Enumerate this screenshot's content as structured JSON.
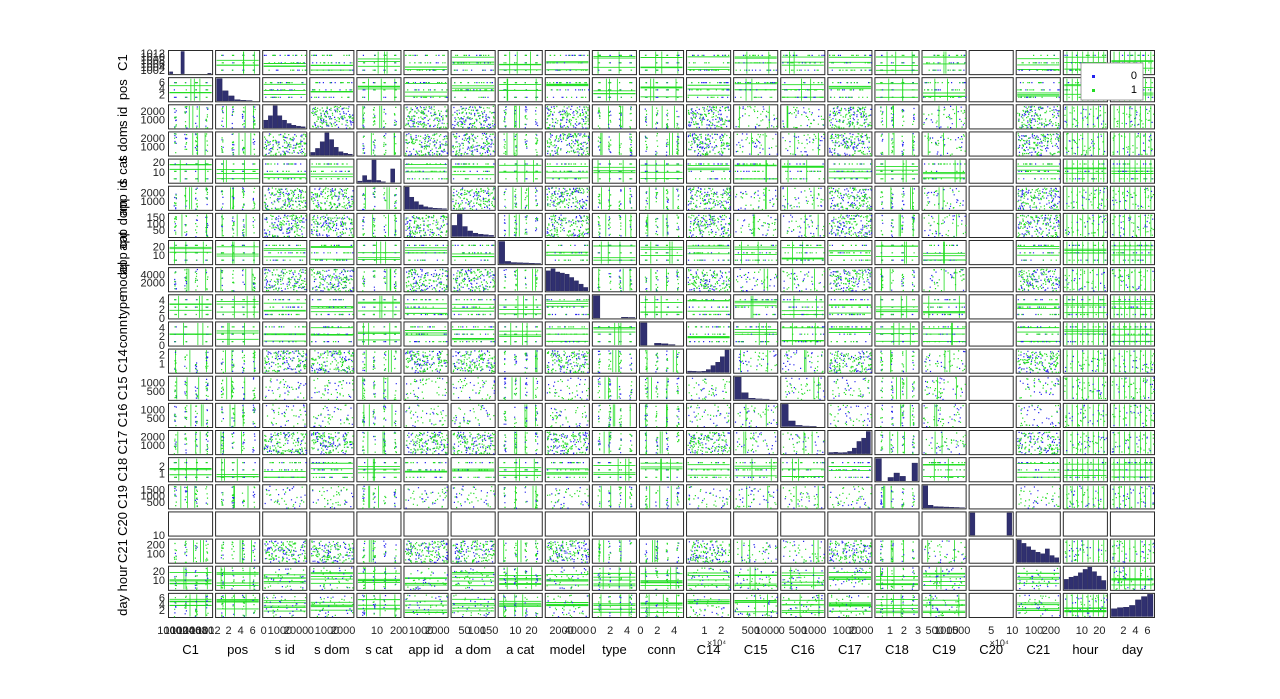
{
  "chart_data": {
    "type": "scatter",
    "subtype": "scatter-matrix (gplotmatrix) with diagonal histograms",
    "variables": [
      "C1",
      "pos",
      "s id",
      "s dom",
      "s cat",
      "app id",
      "a dom",
      "a cat",
      "model",
      "type",
      "conn",
      "C14",
      "C15",
      "C16",
      "C17",
      "C18",
      "C19",
      "C20",
      "C21",
      "hour",
      "day"
    ],
    "row_labels": [
      "C1",
      "pos",
      "s id",
      "s dom",
      "s cat",
      "app id",
      "app dom",
      "app cat",
      "model",
      "type",
      "conn",
      "C14",
      "C15",
      "C16",
      "C17",
      "C18",
      "C19",
      "C20",
      "C21",
      "hour",
      "day"
    ],
    "col_labels": [
      "C1",
      "pos",
      "s id",
      "s dom",
      "s cat",
      "app id",
      "a dom",
      "a cat",
      "model",
      "type",
      "conn",
      "C14",
      "C15",
      "C16",
      "C17",
      "C18",
      "C19",
      "C20",
      "C21",
      "hour",
      "day"
    ],
    "ranges": [
      [
        1000,
        1013
      ],
      [
        0,
        7
      ],
      [
        0,
        2600
      ],
      [
        0,
        2600
      ],
      [
        0,
        22
      ],
      [
        0,
        2600
      ],
      [
        0,
        170
      ],
      [
        0,
        26
      ],
      [
        0,
        5500
      ],
      [
        0,
        5
      ],
      [
        0,
        5
      ],
      [
        0,
        25000
      ],
      [
        0,
        1300
      ],
      [
        0,
        1300
      ],
      [
        0,
        2600
      ],
      [
        0,
        3
      ],
      [
        0,
        1800
      ],
      [
        0,
        100000
      ],
      [
        0,
        250
      ],
      [
        0,
        24
      ],
      [
        0,
        7
      ]
    ],
    "row_ticks": [
      {
        "labels": [
          "1012",
          "1010",
          "1008",
          "1006",
          "1004",
          "1002"
        ],
        "values": [
          1012,
          1010,
          1008,
          1006,
          1004,
          1002
        ]
      },
      {
        "labels": [
          "6",
          "4",
          "2"
        ],
        "values": [
          6,
          4,
          2
        ]
      },
      {
        "labels": [
          "2000",
          "1000"
        ],
        "values": [
          2000,
          1000
        ]
      },
      {
        "labels": [
          "2000",
          "1000"
        ],
        "values": [
          2000,
          1000
        ]
      },
      {
        "labels": [
          "20",
          "10"
        ],
        "values": [
          20,
          10
        ]
      },
      {
        "labels": [
          "2000",
          "1000"
        ],
        "values": [
          2000,
          1000
        ]
      },
      {
        "labels": [
          "150",
          "100",
          "50"
        ],
        "values": [
          150,
          100,
          50
        ]
      },
      {
        "labels": [
          "20",
          "10"
        ],
        "values": [
          20,
          10
        ]
      },
      {
        "labels": [
          "4000",
          "2000"
        ],
        "values": [
          4000,
          2000
        ]
      },
      {
        "labels": [
          "4",
          "2",
          "0"
        ],
        "values": [
          4,
          2,
          0
        ]
      },
      {
        "labels": [
          "4",
          "2",
          "0"
        ],
        "values": [
          4,
          2,
          0
        ]
      },
      {
        "labels": [
          "2",
          "1"
        ],
        "values": [
          20000,
          10000
        ],
        "exponent": "×10⁴"
      },
      {
        "labels": [
          "1000",
          "500"
        ],
        "values": [
          1000,
          500
        ]
      },
      {
        "labels": [
          "1000",
          "500"
        ],
        "values": [
          1000,
          500
        ]
      },
      {
        "labels": [
          "2000",
          "1000"
        ],
        "values": [
          2000,
          1000
        ]
      },
      {
        "labels": [
          "2",
          "1"
        ],
        "values": [
          2,
          1
        ]
      },
      {
        "labels": [
          "1500",
          "1000",
          "500"
        ],
        "values": [
          1500,
          1000,
          500
        ]
      },
      {
        "labels": [
          "10"
        ],
        "values": [
          0
        ]
      },
      {
        "labels": [
          "200",
          "100"
        ],
        "values": [
          200,
          100
        ]
      },
      {
        "labels": [
          "20",
          "10"
        ],
        "values": [
          20,
          10
        ]
      },
      {
        "labels": [
          "6",
          "4",
          "2"
        ],
        "values": [
          6,
          4,
          2
        ]
      }
    ],
    "col_ticks": [
      {
        "labels": [
          "1000",
          "1002",
          "1004",
          "1006",
          "1008",
          "1010",
          "1012"
        ],
        "values": [
          1000,
          1002,
          1004,
          1006,
          1008,
          1010,
          1012
        ]
      },
      {
        "labels": [
          "2",
          "4",
          "6"
        ],
        "values": [
          2,
          4,
          6
        ]
      },
      {
        "labels": [
          "0",
          "1000",
          "2000"
        ],
        "values": [
          0,
          1000,
          2000
        ]
      },
      {
        "labels": [
          "0",
          "1000",
          "2000"
        ],
        "values": [
          0,
          1000,
          2000
        ]
      },
      {
        "labels": [
          "10",
          "20"
        ],
        "values": [
          10,
          20
        ]
      },
      {
        "labels": [
          "0",
          "1000",
          "2000"
        ],
        "values": [
          0,
          1000,
          2000
        ]
      },
      {
        "labels": [
          "50",
          "100",
          "150"
        ],
        "values": [
          50,
          100,
          150
        ]
      },
      {
        "labels": [
          "10",
          "20"
        ],
        "values": [
          10,
          20
        ]
      },
      {
        "labels": [
          "2000",
          "4000"
        ],
        "values": [
          2000,
          4000
        ]
      },
      {
        "labels": [
          "0",
          "2",
          "4"
        ],
        "values": [
          0,
          2,
          4
        ]
      },
      {
        "labels": [
          "0",
          "2",
          "4"
        ],
        "values": [
          0,
          2,
          4
        ]
      },
      {
        "labels": [
          "1",
          "2"
        ],
        "values": [
          10000,
          20000
        ],
        "exponent": "×10⁴"
      },
      {
        "labels": [
          "500",
          "1000"
        ],
        "values": [
          500,
          1000
        ]
      },
      {
        "labels": [
          "0",
          "500",
          "1000"
        ],
        "values": [
          0,
          500,
          1000
        ]
      },
      {
        "labels": [
          "1000",
          "2000"
        ],
        "values": [
          1000,
          2000
        ]
      },
      {
        "labels": [
          "1",
          "2",
          "3"
        ],
        "values": [
          1,
          2,
          3
        ]
      },
      {
        "labels": [
          "500",
          "1000",
          "1500"
        ],
        "values": [
          500,
          1000,
          1500
        ]
      },
      {
        "labels": [
          "5",
          "10"
        ],
        "values": [
          50000,
          100000
        ],
        "exponent": "×10⁴"
      },
      {
        "labels": [
          "100",
          "200"
        ],
        "values": [
          100,
          200
        ]
      },
      {
        "labels": [
          "10",
          "20"
        ],
        "values": [
          10,
          20
        ]
      },
      {
        "labels": [
          "2",
          "4",
          "6"
        ],
        "values": [
          2,
          4,
          6
        ]
      }
    ],
    "diagonal_histograms": [
      [
        0.08,
        0.0,
        0.0,
        1.0,
        0.0,
        0.0,
        0.0,
        0.0,
        0.0,
        0.0,
        0.02
      ],
      [
        1.0,
        0.45,
        0.22,
        0.05,
        0.02,
        0.01,
        0.0
      ],
      [
        0.35,
        0.55,
        1.0,
        0.55,
        0.35,
        0.2,
        0.12,
        0.08,
        0.05
      ],
      [
        0.12,
        0.3,
        0.6,
        1.0,
        0.7,
        0.35,
        0.15,
        0.08,
        0.04
      ],
      [
        0.05,
        0.3,
        0.1,
        1.0,
        0.08,
        0.02,
        0.0,
        0.6,
        0.0
      ],
      [
        1.0,
        0.55,
        0.35,
        0.2,
        0.12,
        0.08,
        0.05,
        0.04,
        0.03
      ],
      [
        0.5,
        1.0,
        0.45,
        0.25,
        0.15,
        0.1,
        0.08,
        0.05
      ],
      [
        1.0,
        0.1,
        0.05,
        0.04,
        0.03,
        0.02,
        0.01
      ],
      [
        0.9,
        1.0,
        0.85,
        0.8,
        0.75,
        0.6,
        0.45,
        0.3,
        0.15
      ],
      [
        1.0,
        0.0,
        0.0,
        0.0,
        0.03,
        0.02
      ],
      [
        1.0,
        0.0,
        0.08,
        0.06,
        0.02,
        0.0
      ],
      [
        0.05,
        0.04,
        0.03,
        0.04,
        0.12,
        0.3,
        0.45,
        0.7,
        1.0
      ],
      [
        1.0,
        0.3,
        0.05,
        0.02,
        0.01,
        0.0
      ],
      [
        1.0,
        0.25,
        0.05,
        0.02,
        0.01,
        0.0
      ],
      [
        0.05,
        0.06,
        0.04,
        0.05,
        0.1,
        0.25,
        0.55,
        0.7,
        1.0
      ],
      [
        1.0,
        0.0,
        0.15,
        0.35,
        0.2,
        0.0,
        0.8
      ],
      [
        1.0,
        0.12,
        0.06,
        0.05,
        0.04,
        0.03,
        0.02,
        0.01
      ],
      [
        1.0,
        0.0,
        0.0,
        0.0,
        0.0,
        0.0,
        0.0,
        1.0
      ],
      [
        1.0,
        0.85,
        0.7,
        0.55,
        0.45,
        0.38,
        0.6,
        0.3,
        0.2
      ],
      [
        0.45,
        0.55,
        0.6,
        0.75,
        0.9,
        1.0,
        0.8,
        0.6,
        0.4
      ],
      [
        0.35,
        0.4,
        0.42,
        0.5,
        0.75,
        0.9,
        1.0
      ]
    ],
    "legend": {
      "entries": [
        "0",
        "1"
      ],
      "colors": [
        "#2222ee",
        "#22dd22"
      ],
      "placement": "top-right"
    },
    "grid": false
  },
  "colors": {
    "class0": "#2222ee",
    "class1": "#22dd22",
    "histogram": "#303070",
    "panel_border": "#2a2a2a"
  }
}
